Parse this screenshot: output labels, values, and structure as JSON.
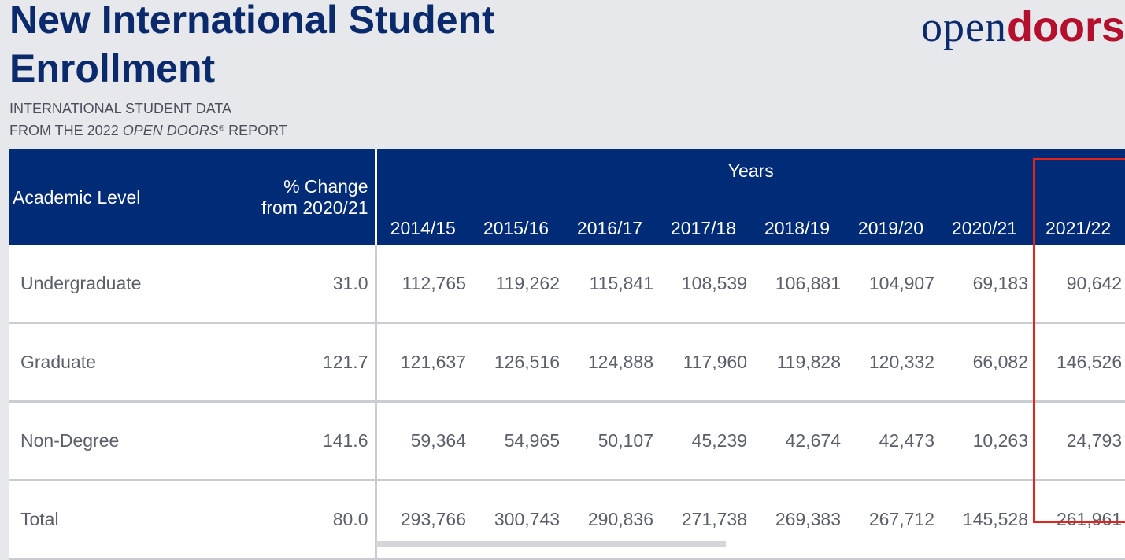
{
  "header": {
    "title": "New International Student Enrollment",
    "subtitle_line1": "INTERNATIONAL STUDENT DATA",
    "subtitle_line2_prefix": "FROM THE 2022 ",
    "subtitle_line2_italic": "OPEN DOORS",
    "subtitle_line2_mark": "®",
    "subtitle_line2_suffix": " REPORT"
  },
  "logo": {
    "part1": "open",
    "part2": "doors"
  },
  "table": {
    "col_level": "Academic Level",
    "col_change_line1": "% Change",
    "col_change_line2": "from 2020/21",
    "years_label": "Years",
    "years": [
      "2014/15",
      "2015/16",
      "2016/17",
      "2017/18",
      "2018/19",
      "2019/20",
      "2020/21",
      "2021/22"
    ],
    "rows": [
      {
        "level": "Undergraduate",
        "change": "31.0",
        "values": [
          "112,765",
          "119,262",
          "115,841",
          "108,539",
          "106,881",
          "104,907",
          "69,183",
          "90,642"
        ]
      },
      {
        "level": "Graduate",
        "change": "121.7",
        "values": [
          "121,637",
          "126,516",
          "124,888",
          "117,960",
          "119,828",
          "120,332",
          "66,082",
          "146,526"
        ]
      },
      {
        "level": "Non-Degree",
        "change": "141.6",
        "values": [
          "59,364",
          "54,965",
          "50,107",
          "45,239",
          "42,674",
          "42,473",
          "10,263",
          "24,793"
        ]
      },
      {
        "level": "Total",
        "change": "80.0",
        "values": [
          "293,766",
          "300,743",
          "290,836",
          "271,738",
          "269,383",
          "267,712",
          "145,528",
          "261,961"
        ]
      }
    ]
  },
  "colors": {
    "header_bg": "#002b76",
    "title": "#0b2a6b",
    "brand_red": "#b40f2d",
    "highlight": "#e5231b"
  }
}
